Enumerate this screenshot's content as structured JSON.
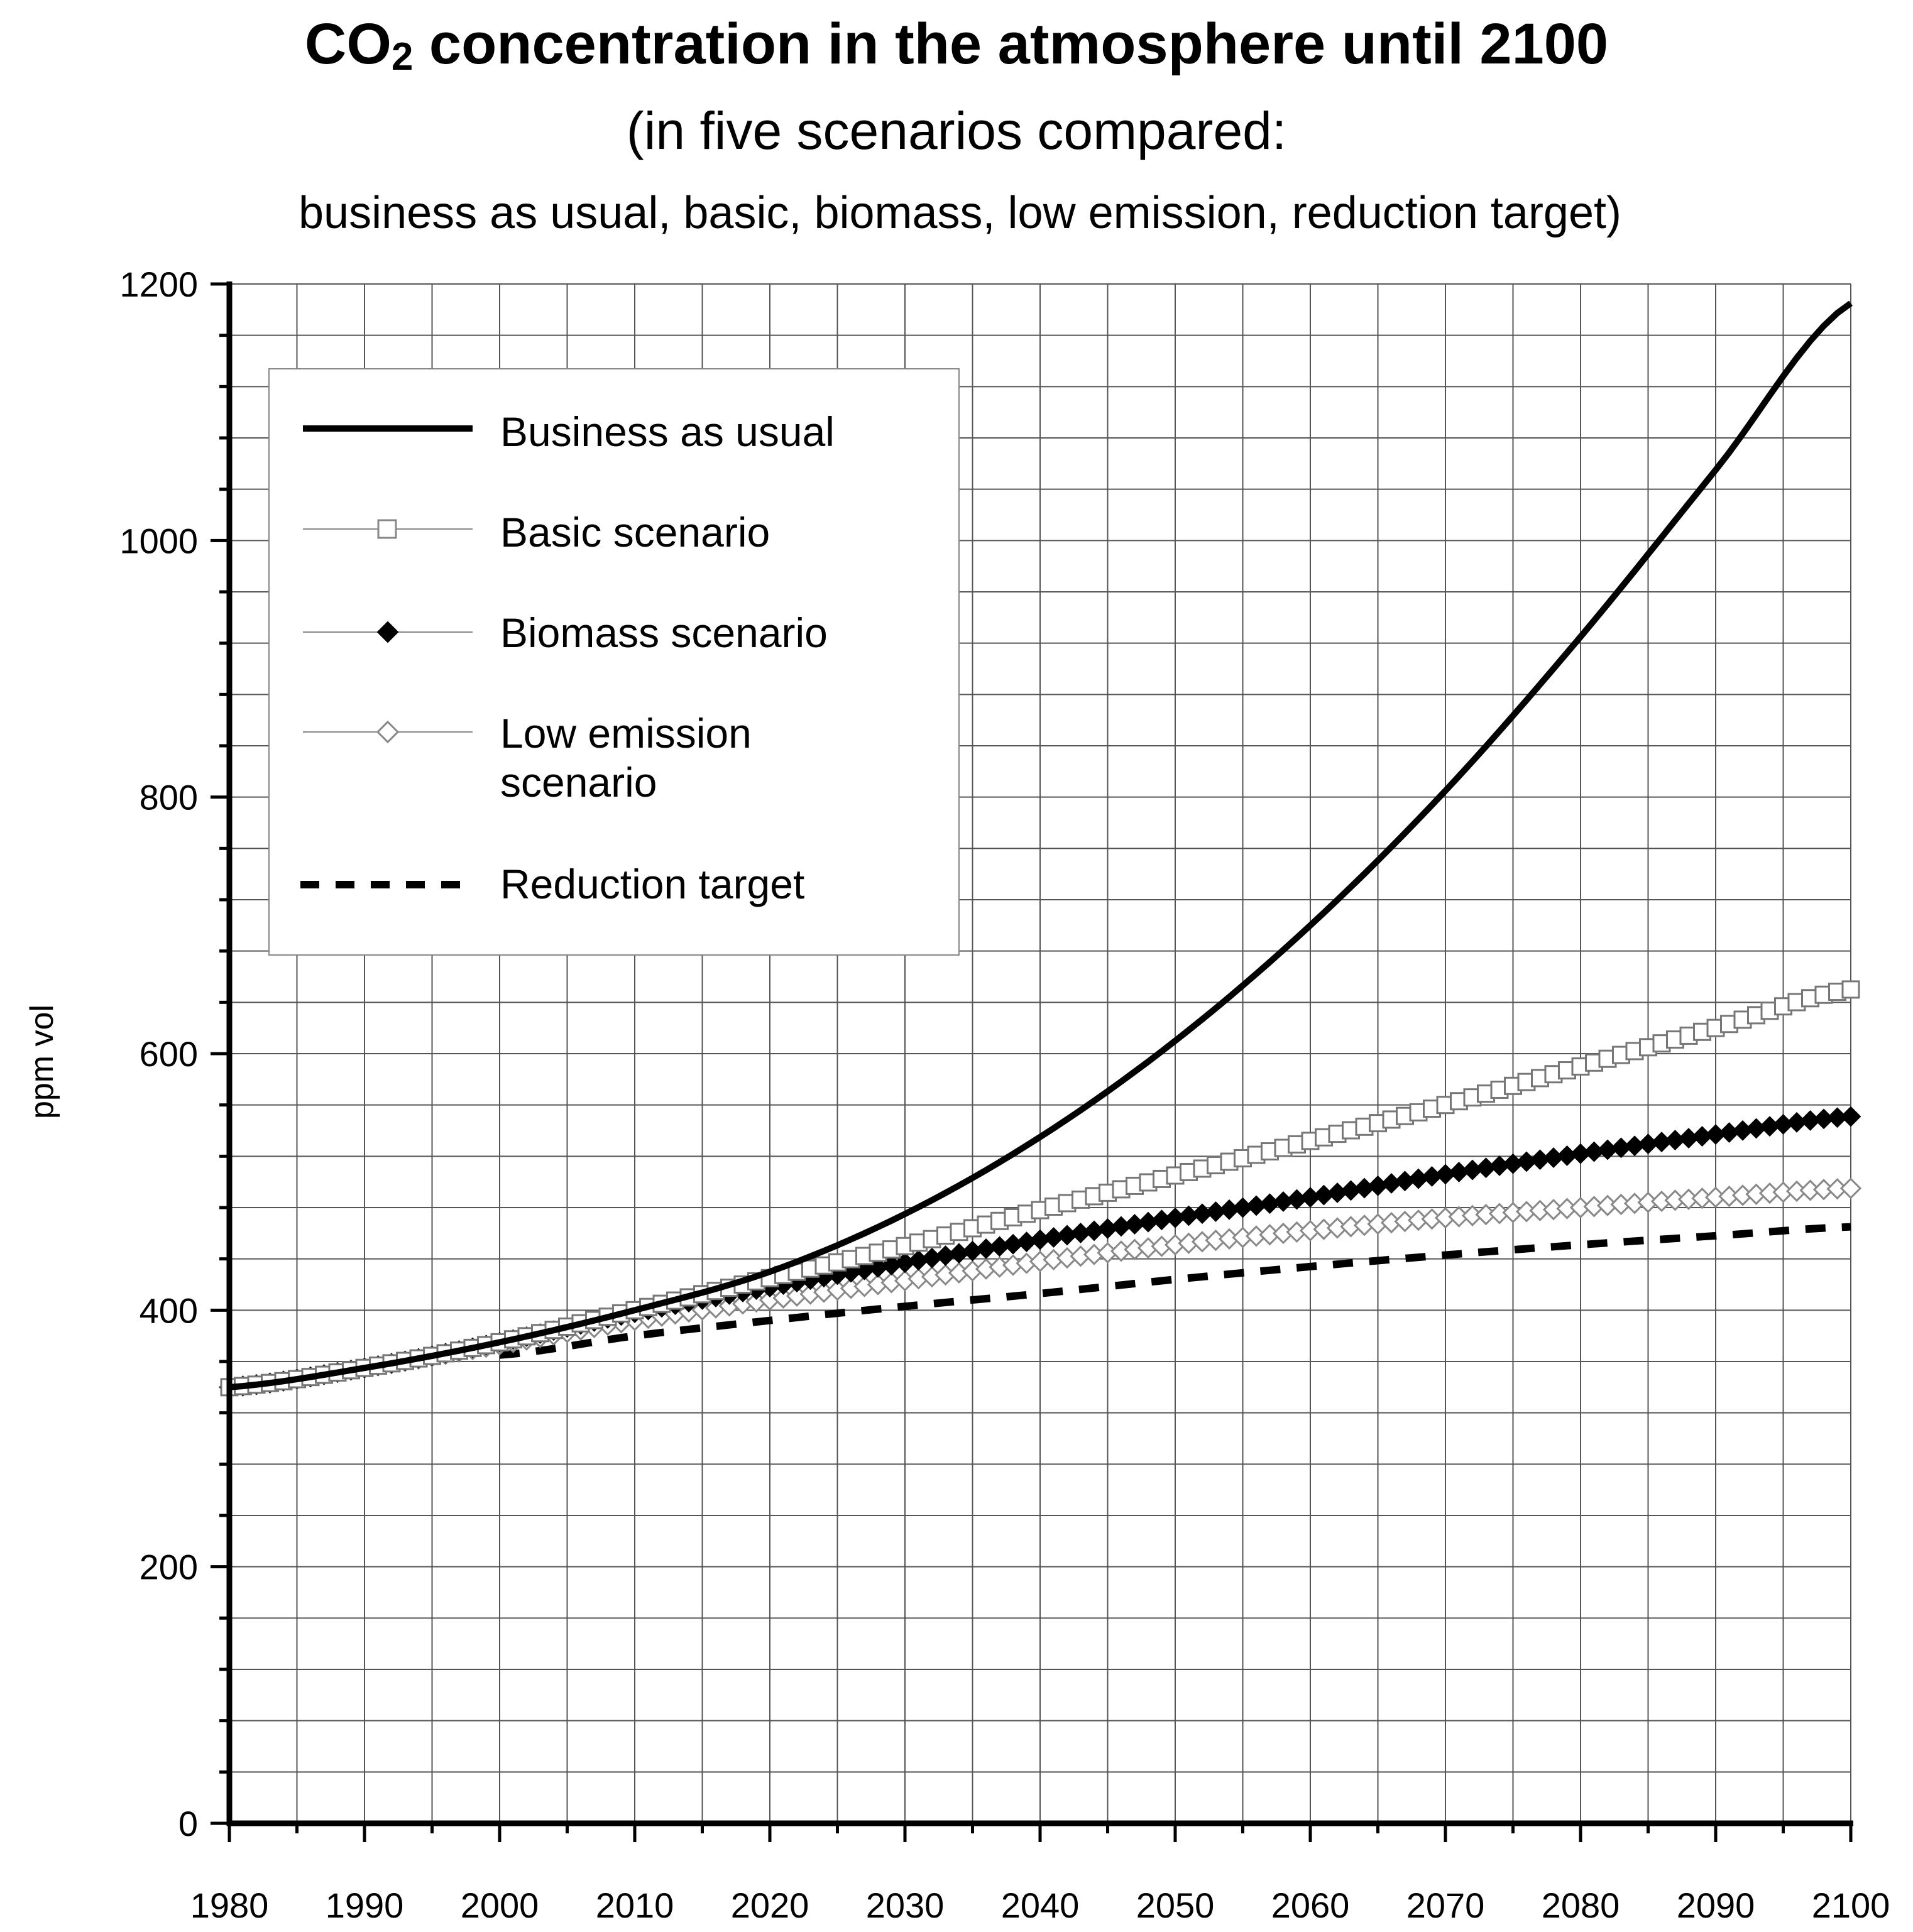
{
  "title_main": "CO",
  "title_sub": "2",
  "title_rest": " concentration in the atmosphere until 2100",
  "subtitle_line1": "(in five scenarios compared:",
  "subtitle_line2": "business as usual, basic, biomass, low emission, reduction target)",
  "chart_data": {
    "type": "line",
    "title": "CO2 concentration in the atmosphere until 2100",
    "subtitle": "(in five scenarios compared: business as usual, basic, biomass, low emission, reduction target)",
    "xlabel": "",
    "ylabel": "ppm vol",
    "xlim": [
      1980,
      2100
    ],
    "ylim": [
      0,
      1200
    ],
    "x_ticks": [
      "1980",
      "1990",
      "2000",
      "2010",
      "2020",
      "2030",
      "2040",
      "2050",
      "2060",
      "2070",
      "2080",
      "2090",
      "2100"
    ],
    "y_ticks": [
      "0",
      "200",
      "400",
      "600",
      "800",
      "1000",
      "1200"
    ],
    "grid": true,
    "legend_position": "top-left",
    "x": [
      1980,
      1990,
      2000,
      2010,
      2020,
      2030,
      2040,
      2050,
      2060,
      2070,
      2080,
      2090,
      2100
    ],
    "series": [
      {
        "name": "Business as usual",
        "style": "thick-solid",
        "values": [
          340,
          355,
          375,
          400,
          430,
          475,
          535,
          610,
          700,
          805,
          925,
          1055,
          1185
        ]
      },
      {
        "name": "Basic scenario",
        "style": "open-square",
        "values": [
          340,
          355,
          375,
          400,
          425,
          450,
          478,
          505,
          532,
          560,
          590,
          620,
          650
        ]
      },
      {
        "name": "Biomass scenario",
        "style": "filled-diamond",
        "values": [
          340,
          355,
          375,
          398,
          418,
          437,
          455,
          472,
          488,
          506,
          522,
          537,
          551
        ]
      },
      {
        "name": "Low emission scenario",
        "style": "open-diamond",
        "values": [
          340,
          355,
          373,
          392,
          408,
          423,
          438,
          451,
          462,
          472,
          480,
          488,
          495
        ]
      },
      {
        "name": "Reduction target",
        "style": "dashed",
        "x": [
          2000,
          2010,
          2020,
          2030,
          2040,
          2050,
          2060,
          2070,
          2080,
          2090,
          2100
        ],
        "values": [
          365,
          380,
          392,
          403,
          413,
          424,
          434,
          443,
          451,
          458,
          465
        ]
      }
    ]
  },
  "legend": [
    {
      "label": "Business as usual"
    },
    {
      "label": "Basic scenario"
    },
    {
      "label": "Biomass scenario"
    },
    {
      "label_line1": "Low emission",
      "label_line2": "scenario"
    },
    {
      "label": "Reduction target"
    }
  ]
}
